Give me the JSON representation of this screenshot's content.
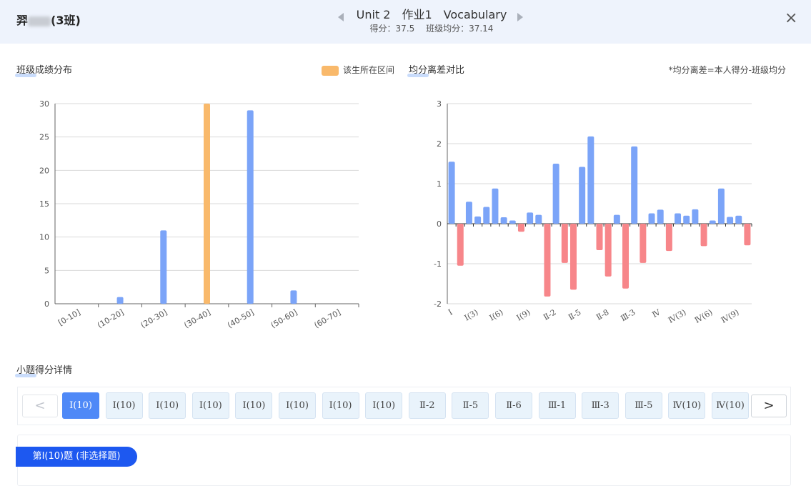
{
  "header": {
    "student_prefix": "羿",
    "student_suffix": "(3班)",
    "title": "Unit 2　作业1　Vocabulary",
    "score_line": "得分：37.5　 班级均分：37.14",
    "close_label": "×"
  },
  "sections": {
    "distribution_title": "班级成绩分布",
    "legend_label": "该生所在区间",
    "deviation_title": "均分离差对比",
    "deviation_note": "*均分离差=本人得分-班级均分",
    "items_title": "小题得分详情"
  },
  "colors": {
    "bar_blue": "#7ba4f8",
    "bar_highlight": "#f9b96b",
    "bar_negative": "#f7868a",
    "active_button": "#4f89f7",
    "tag_blue": "#1d58f0",
    "header_bg": "#eef3fc"
  },
  "chart_data": [
    {
      "type": "bar",
      "title": "班级成绩分布",
      "categories": [
        "[0-10]",
        "(10-20]",
        "(20-30]",
        "(30-40]",
        "(40-50]",
        "(50-60]",
        "(60-70]"
      ],
      "values": [
        0,
        1,
        11,
        30,
        29,
        2,
        0
      ],
      "highlight_index": 3,
      "ylim": [
        0,
        30
      ],
      "yticks": [
        0,
        5,
        10,
        15,
        20,
        25,
        30
      ],
      "legend": "该生所在区间",
      "legend_position": "top-right",
      "grid": true
    },
    {
      "type": "bar",
      "title": "均分离差对比",
      "x_labels": [
        "Ⅰ",
        "Ⅰ(3)",
        "Ⅰ(6)",
        "Ⅰ(9)",
        "Ⅱ-2",
        "Ⅱ-5",
        "Ⅱ-8",
        "Ⅲ-3",
        "Ⅳ",
        "Ⅳ(3)",
        "Ⅳ(6)",
        "Ⅳ(9)"
      ],
      "values": [
        1.55,
        -1.05,
        0.55,
        0.18,
        0.42,
        0.88,
        0.16,
        0.08,
        -0.2,
        0.28,
        0.22,
        -1.82,
        1.5,
        -0.98,
        -1.65,
        1.42,
        2.18,
        -0.66,
        -1.32,
        0.22,
        -1.62,
        1.93,
        -0.98,
        0.26,
        0.35,
        -0.68,
        0.26,
        0.2,
        0.36,
        -0.56,
        0.08,
        0.88,
        0.17,
        0.2,
        -0.54
      ],
      "ylim": [
        -2,
        3
      ],
      "yticks": [
        -2,
        -1,
        0,
        1,
        2,
        3
      ],
      "grid": true
    }
  ],
  "questions": {
    "prev_label": "<",
    "next_label": ">",
    "items": [
      "Ⅰ(10)",
      "Ⅰ(10)",
      "Ⅰ(10)",
      "Ⅰ(10)",
      "Ⅰ(10)",
      "Ⅰ(10)",
      "Ⅰ(10)",
      "Ⅰ(10)",
      "Ⅱ-2",
      "Ⅱ-5",
      "Ⅱ-6",
      "Ⅲ-1",
      "Ⅲ-3",
      "Ⅲ-5",
      "Ⅳ(10)",
      "Ⅳ(10)"
    ],
    "active_index": 0
  },
  "detail": {
    "tag_label": "第Ⅰ(10)题 (非选择题)"
  }
}
